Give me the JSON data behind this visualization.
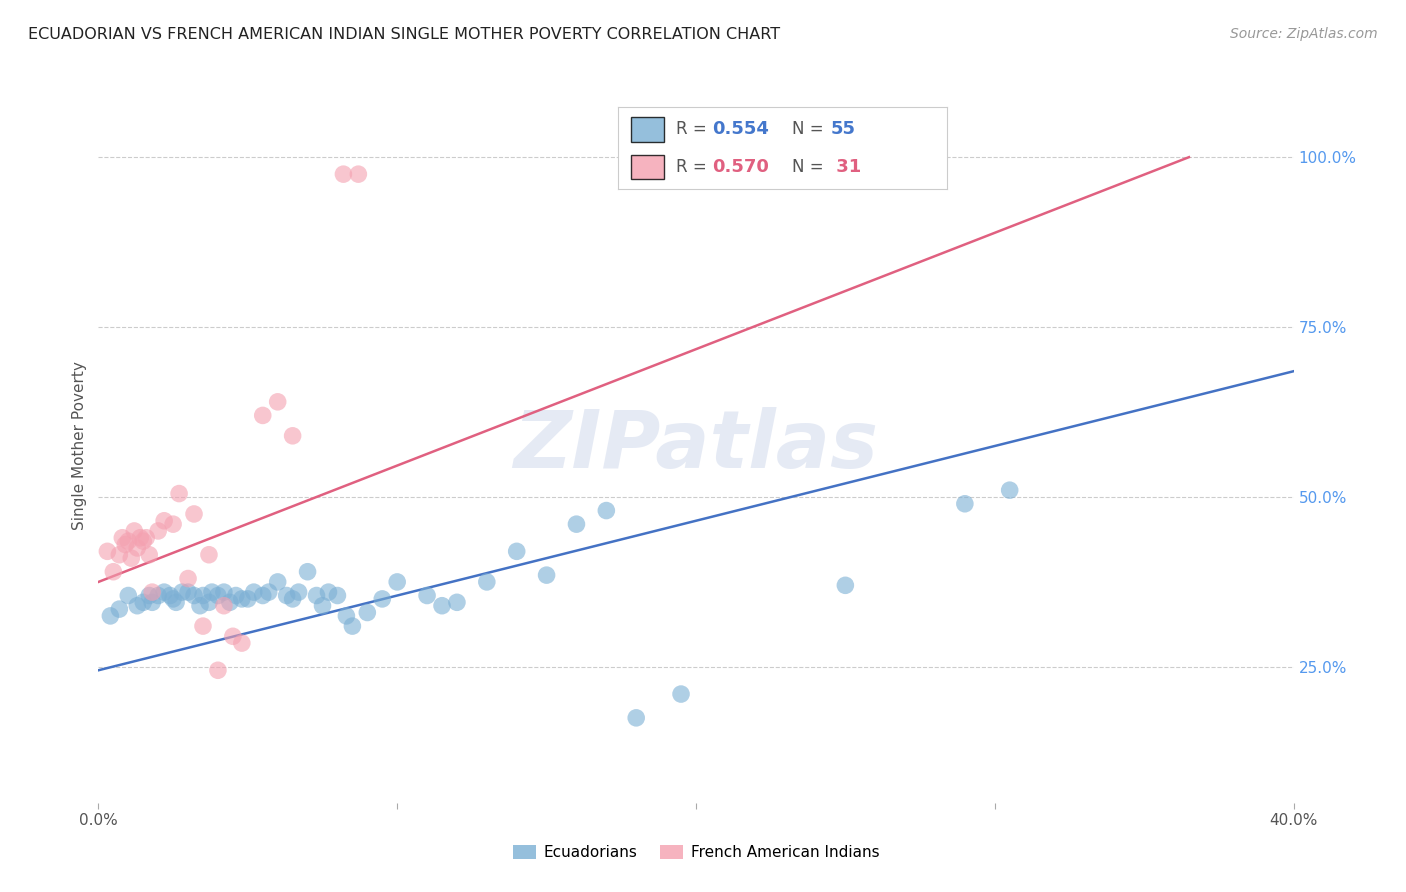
{
  "title": "ECUADORIAN VS FRENCH AMERICAN INDIAN SINGLE MOTHER POVERTY CORRELATION CHART",
  "source": "Source: ZipAtlas.com",
  "ylabel": "Single Mother Poverty",
  "ytick_values": [
    0.25,
    0.5,
    0.75,
    1.0
  ],
  "xmin": 0.0,
  "xmax": 0.4,
  "ymin": 0.05,
  "ymax": 1.1,
  "blue_color": "#7BAFD4",
  "pink_color": "#F4A0B0",
  "blue_line_color": "#4472C4",
  "pink_line_color": "#E06080",
  "watermark": "ZIPatlas",
  "blue_line_x": [
    0.0,
    0.4
  ],
  "blue_line_y": [
    0.245,
    0.685
  ],
  "pink_line_x": [
    0.0,
    0.365
  ],
  "pink_line_y": [
    0.375,
    1.0
  ],
  "blue_points": [
    [
      0.004,
      0.325
    ],
    [
      0.007,
      0.335
    ],
    [
      0.01,
      0.355
    ],
    [
      0.013,
      0.34
    ],
    [
      0.015,
      0.345
    ],
    [
      0.017,
      0.355
    ],
    [
      0.018,
      0.345
    ],
    [
      0.02,
      0.355
    ],
    [
      0.022,
      0.36
    ],
    [
      0.024,
      0.355
    ],
    [
      0.025,
      0.35
    ],
    [
      0.026,
      0.345
    ],
    [
      0.028,
      0.36
    ],
    [
      0.03,
      0.36
    ],
    [
      0.032,
      0.355
    ],
    [
      0.034,
      0.34
    ],
    [
      0.035,
      0.355
    ],
    [
      0.037,
      0.345
    ],
    [
      0.038,
      0.36
    ],
    [
      0.04,
      0.355
    ],
    [
      0.042,
      0.36
    ],
    [
      0.044,
      0.345
    ],
    [
      0.046,
      0.355
    ],
    [
      0.048,
      0.35
    ],
    [
      0.05,
      0.35
    ],
    [
      0.052,
      0.36
    ],
    [
      0.055,
      0.355
    ],
    [
      0.057,
      0.36
    ],
    [
      0.06,
      0.375
    ],
    [
      0.063,
      0.355
    ],
    [
      0.065,
      0.35
    ],
    [
      0.067,
      0.36
    ],
    [
      0.07,
      0.39
    ],
    [
      0.073,
      0.355
    ],
    [
      0.075,
      0.34
    ],
    [
      0.077,
      0.36
    ],
    [
      0.08,
      0.355
    ],
    [
      0.083,
      0.325
    ],
    [
      0.085,
      0.31
    ],
    [
      0.09,
      0.33
    ],
    [
      0.095,
      0.35
    ],
    [
      0.1,
      0.375
    ],
    [
      0.11,
      0.355
    ],
    [
      0.115,
      0.34
    ],
    [
      0.12,
      0.345
    ],
    [
      0.13,
      0.375
    ],
    [
      0.14,
      0.42
    ],
    [
      0.15,
      0.385
    ],
    [
      0.16,
      0.46
    ],
    [
      0.17,
      0.48
    ],
    [
      0.18,
      0.175
    ],
    [
      0.195,
      0.21
    ],
    [
      0.25,
      0.37
    ],
    [
      0.29,
      0.49
    ],
    [
      0.305,
      0.51
    ]
  ],
  "pink_points": [
    [
      0.003,
      0.42
    ],
    [
      0.005,
      0.39
    ],
    [
      0.007,
      0.415
    ],
    [
      0.008,
      0.44
    ],
    [
      0.009,
      0.43
    ],
    [
      0.01,
      0.435
    ],
    [
      0.011,
      0.41
    ],
    [
      0.012,
      0.45
    ],
    [
      0.013,
      0.425
    ],
    [
      0.014,
      0.44
    ],
    [
      0.015,
      0.435
    ],
    [
      0.016,
      0.44
    ],
    [
      0.017,
      0.415
    ],
    [
      0.018,
      0.36
    ],
    [
      0.02,
      0.45
    ],
    [
      0.022,
      0.465
    ],
    [
      0.025,
      0.46
    ],
    [
      0.027,
      0.505
    ],
    [
      0.03,
      0.38
    ],
    [
      0.032,
      0.475
    ],
    [
      0.035,
      0.31
    ],
    [
      0.037,
      0.415
    ],
    [
      0.04,
      0.245
    ],
    [
      0.042,
      0.34
    ],
    [
      0.045,
      0.295
    ],
    [
      0.048,
      0.285
    ],
    [
      0.055,
      0.62
    ],
    [
      0.06,
      0.64
    ],
    [
      0.065,
      0.59
    ],
    [
      0.082,
      0.975
    ],
    [
      0.087,
      0.975
    ]
  ]
}
